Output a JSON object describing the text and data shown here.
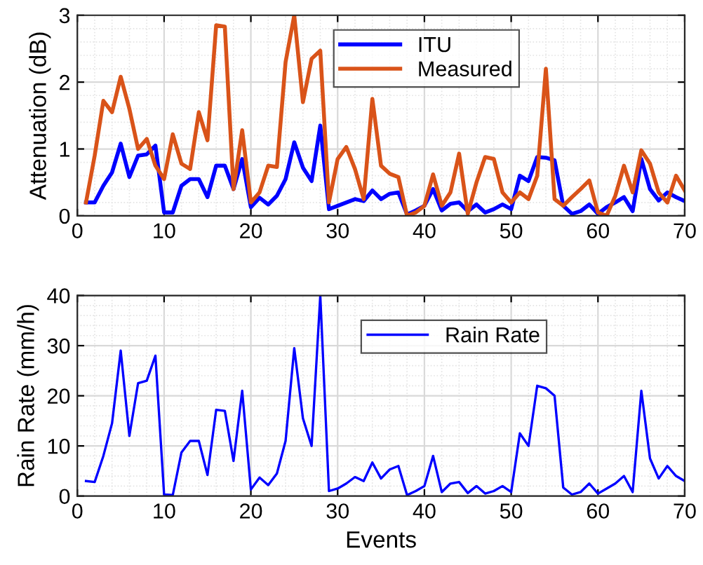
{
  "chart_data": [
    {
      "type": "line",
      "ylabel": "Attenuation (dB)",
      "x": [
        1,
        2,
        3,
        4,
        5,
        6,
        7,
        8,
        9,
        10,
        11,
        12,
        13,
        14,
        15,
        16,
        17,
        18,
        19,
        20,
        21,
        22,
        23,
        24,
        25,
        26,
        27,
        28,
        29,
        30,
        31,
        32,
        33,
        34,
        35,
        36,
        37,
        38,
        39,
        40,
        41,
        42,
        43,
        44,
        45,
        46,
        47,
        48,
        49,
        50,
        51,
        52,
        53,
        54,
        55,
        56,
        57,
        58,
        59,
        60,
        61,
        62,
        63,
        64,
        65,
        66,
        67,
        68,
        69,
        70
      ],
      "series": [
        {
          "name": "ITU",
          "color": "#0000ff",
          "values": [
            0.2,
            0.2,
            0.45,
            0.65,
            1.08,
            0.58,
            0.9,
            0.92,
            1.05,
            0.05,
            0.05,
            0.45,
            0.55,
            0.55,
            0.28,
            0.75,
            0.75,
            0.4,
            0.85,
            0.13,
            0.27,
            0.17,
            0.3,
            0.55,
            1.1,
            0.72,
            0.52,
            1.35,
            0.1,
            0.15,
            0.2,
            0.25,
            0.22,
            0.38,
            0.25,
            0.33,
            0.35,
            0.02,
            0.08,
            0.15,
            0.4,
            0.08,
            0.18,
            0.2,
            0.07,
            0.17,
            0.05,
            0.1,
            0.17,
            0.1,
            0.6,
            0.52,
            0.88,
            0.87,
            0.83,
            0.15,
            0.03,
            0.07,
            0.17,
            0.03,
            0.13,
            0.2,
            0.28,
            0.07,
            0.85,
            0.4,
            0.23,
            0.35,
            0.28,
            0.22
          ]
        },
        {
          "name": "Measured",
          "color": "#d95319",
          "values": [
            0.2,
            0.9,
            1.72,
            1.55,
            2.08,
            1.6,
            1.0,
            1.15,
            0.75,
            0.55,
            1.22,
            0.78,
            0.7,
            1.55,
            1.13,
            2.85,
            2.83,
            0.4,
            1.28,
            0.2,
            0.35,
            0.75,
            0.73,
            2.3,
            3.0,
            1.7,
            2.35,
            2.47,
            0.2,
            0.85,
            1.03,
            0.7,
            0.25,
            1.75,
            0.75,
            0.63,
            0.58,
            0.0,
            0.05,
            0.15,
            0.62,
            0.15,
            0.35,
            0.93,
            0.03,
            0.5,
            0.88,
            0.85,
            0.35,
            0.2,
            0.35,
            0.25,
            0.6,
            2.2,
            0.25,
            0.15,
            0.28,
            0.4,
            0.53,
            0.05,
            0.0,
            0.3,
            0.75,
            0.35,
            0.98,
            0.78,
            0.35,
            0.2,
            0.6,
            0.38
          ]
        }
      ],
      "xlim": [
        0,
        70
      ],
      "xticks": [
        0,
        10,
        20,
        30,
        40,
        50,
        60,
        70
      ],
      "ylim": [
        0,
        3
      ],
      "yticks": [
        0,
        1,
        2,
        3
      ],
      "grid": true,
      "legend": "top right",
      "marker": "none",
      "line_style": "solid"
    },
    {
      "type": "line",
      "xlabel": "Events",
      "ylabel": "Rain Rate (mm/h)",
      "x": [
        1,
        2,
        3,
        4,
        5,
        6,
        7,
        8,
        9,
        10,
        11,
        12,
        13,
        14,
        15,
        16,
        17,
        18,
        19,
        20,
        21,
        22,
        23,
        24,
        25,
        26,
        27,
        28,
        29,
        30,
        31,
        32,
        33,
        34,
        35,
        36,
        37,
        38,
        39,
        40,
        41,
        42,
        43,
        44,
        45,
        46,
        47,
        48,
        49,
        50,
        51,
        52,
        53,
        54,
        55,
        56,
        57,
        58,
        59,
        60,
        61,
        62,
        63,
        64,
        65,
        66,
        67,
        68,
        69,
        70
      ],
      "series": [
        {
          "name": "Rain Rate",
          "color": "#0000ff",
          "values": [
            3,
            2.8,
            8,
            14.5,
            29,
            12,
            22.5,
            23,
            28,
            0.3,
            0.2,
            8.7,
            11,
            11,
            4.2,
            17.2,
            17,
            7,
            21,
            1.3,
            3.7,
            2.2,
            4.5,
            11,
            29.5,
            15.5,
            10,
            40,
            1,
            1.5,
            2.5,
            3.8,
            3,
            6.7,
            3.5,
            5.3,
            6,
            0.2,
            1,
            2,
            8,
            0.8,
            2.5,
            2.8,
            0.6,
            2,
            0.5,
            1,
            2,
            0.8,
            12.5,
            10,
            22,
            21.5,
            20,
            1.7,
            0.3,
            0.8,
            2.5,
            0.5,
            1.5,
            2.5,
            4,
            0.8,
            21,
            7.5,
            3.5,
            6,
            4,
            3
          ]
        }
      ],
      "xlim": [
        0,
        70
      ],
      "xticks": [
        0,
        10,
        20,
        30,
        40,
        50,
        60,
        70
      ],
      "ylim": [
        0,
        40
      ],
      "yticks": [
        0,
        10,
        20,
        30,
        40
      ],
      "grid": true,
      "legend": "top",
      "marker": "none",
      "line_style": "solid"
    }
  ]
}
